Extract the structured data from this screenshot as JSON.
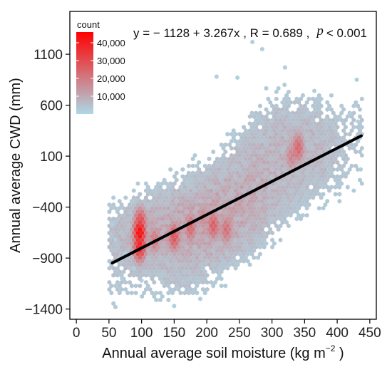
{
  "chart_data": {
    "type": "heatmap",
    "subtype": "hexbin-scatter-with-regression",
    "xlabel": "Annual average soil moisture (kg  m",
    "xlabel_sup": "−2",
    "xlabel_tail": " )",
    "ylabel": "Annual average CWD (mm)",
    "xlim": [
      -10,
      460
    ],
    "ylim": [
      -1500,
      1520
    ],
    "x_ticks": [
      0,
      50,
      100,
      150,
      200,
      250,
      300,
      350,
      400,
      450
    ],
    "x_tick_labels": [
      "0",
      "50",
      "100",
      "150",
      "200",
      "250",
      "300",
      "350",
      "400",
      "450"
    ],
    "y_ticks": [
      -1400,
      -900,
      -400,
      100,
      600,
      1100
    ],
    "y_tick_labels": [
      "−1400",
      "−900",
      "−400",
      "100",
      "600",
      "1100"
    ],
    "grid": false,
    "annotation": {
      "equation": "y = − 1128 + 3.267x , R = 0.689 ,",
      "p_symbol": "p",
      "p_value": "< 0.001"
    },
    "regression": {
      "intercept": -1128,
      "slope": 3.267,
      "x_start": 55,
      "x_end": 437
    },
    "legend": {
      "title": "count",
      "placement": "top-left",
      "labels": [
        "40,000",
        "30,000",
        "20,000",
        "10,000"
      ],
      "values": [
        40000,
        30000,
        20000,
        10000
      ],
      "min": 0,
      "max": 46000,
      "color_low": "#add8e6",
      "color_high": "#ff0000"
    },
    "density_regions": [
      {
        "cx": 150,
        "cy": -650,
        "sx": 60,
        "sy": 220,
        "w": 1.0
      },
      {
        "cx": 220,
        "cy": -450,
        "sx": 45,
        "sy": 260,
        "w": 0.8
      },
      {
        "cx": 270,
        "cy": -150,
        "sx": 35,
        "sy": 280,
        "w": 0.5
      },
      {
        "cx": 300,
        "cy": 300,
        "sx": 35,
        "sy": 380,
        "w": 0.35
      },
      {
        "cx": 350,
        "cy": 200,
        "sx": 30,
        "sy": 280,
        "w": 0.5
      },
      {
        "cx": 100,
        "cy": -700,
        "sx": 10,
        "sy": 200,
        "w": 0.4
      },
      {
        "cx": 175,
        "cy": -1150,
        "sx": 40,
        "sy": 140,
        "w": 0.25
      }
    ],
    "hotspots": [
      {
        "x": 97,
        "y": -650,
        "count": 44000
      },
      {
        "x": 97,
        "y": -780,
        "count": 38000
      },
      {
        "x": 98,
        "y": -560,
        "count": 30000
      },
      {
        "x": 150,
        "y": -690,
        "count": 26000
      },
      {
        "x": 175,
        "y": -600,
        "count": 22000
      },
      {
        "x": 210,
        "y": -580,
        "count": 24000
      },
      {
        "x": 230,
        "y": -620,
        "count": 20000
      },
      {
        "x": 340,
        "y": 180,
        "count": 22000
      },
      {
        "x": 330,
        "y": 100,
        "count": 16000
      },
      {
        "x": 120,
        "y": -720,
        "count": 18000
      },
      {
        "x": 195,
        "y": -500,
        "count": 15000
      }
    ],
    "outliers": [
      {
        "x": 55,
        "y": -570
      },
      {
        "x": 60,
        "y": -720
      },
      {
        "x": 75,
        "y": -850
      },
      {
        "x": 88,
        "y": -1000
      },
      {
        "x": 100,
        "y": -1120
      },
      {
        "x": 430,
        "y": 850
      },
      {
        "x": 432,
        "y": 440
      },
      {
        "x": 436,
        "y": -30
      },
      {
        "x": 270,
        "y": 1220
      },
      {
        "x": 285,
        "y": 1150
      },
      {
        "x": 320,
        "y": 970
      },
      {
        "x": 365,
        "y": 740
      },
      {
        "x": 215,
        "y": 880
      },
      {
        "x": 247,
        "y": 870
      },
      {
        "x": 70,
        "y": -1100
      },
      {
        "x": 150,
        "y": -1370
      },
      {
        "x": 190,
        "y": -1300
      },
      {
        "x": 420,
        "y": 520
      }
    ]
  }
}
